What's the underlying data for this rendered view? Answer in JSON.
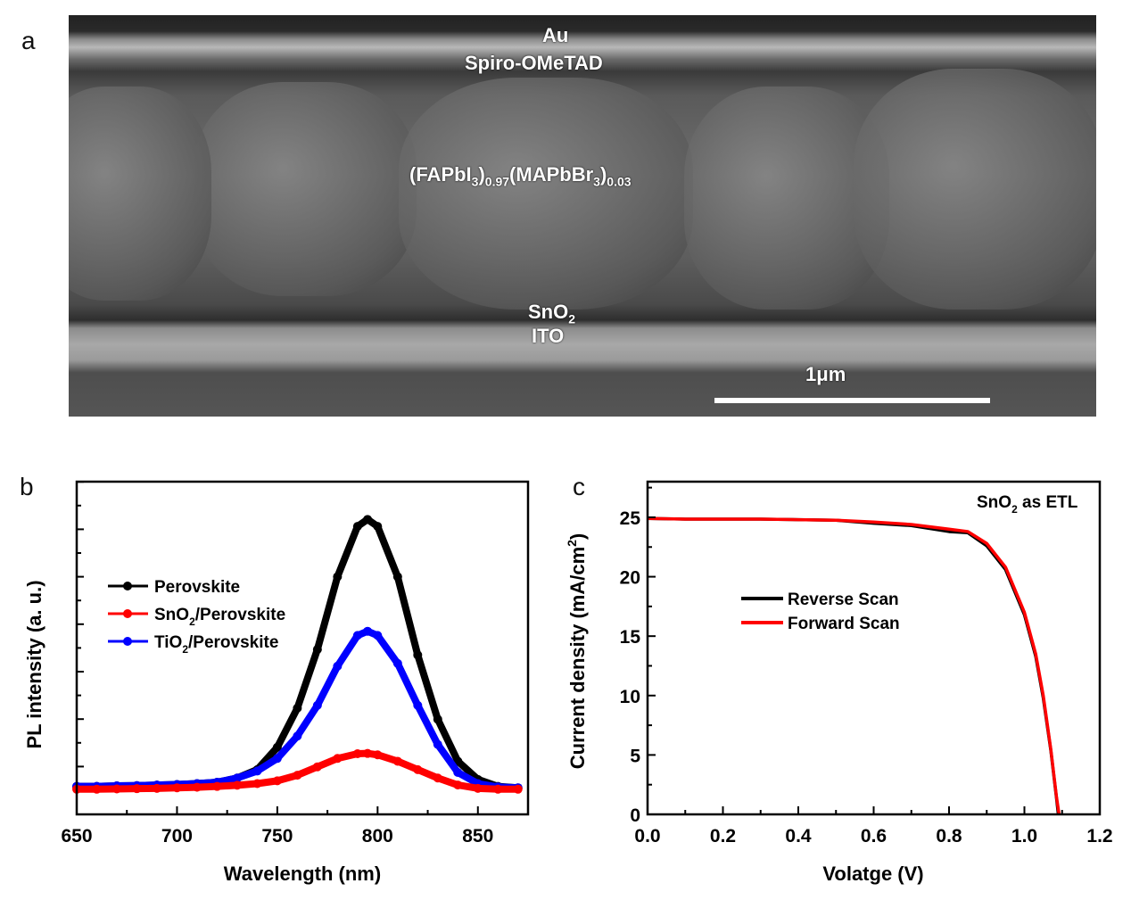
{
  "panels": {
    "a": "a",
    "b": "b",
    "c": "c"
  },
  "sem": {
    "au": "Au",
    "spiro": "Spiro-OMeTAD",
    "perovskite": {
      "p1": "(FAPbI",
      "s1": "3",
      "p2": ")",
      "s2": "0.97",
      "p3": "(MAPbBr",
      "s3": "3",
      "p4": ")",
      "s4": "0.03"
    },
    "sno2": {
      "main": "SnO",
      "sub": "2"
    },
    "ito": "ITO",
    "scale": "1μm"
  },
  "chart_data": [
    {
      "type": "scatter",
      "xlabel": "Wavelength (nm)",
      "ylabel": "PL intensity (a. u.)",
      "xlim": [
        650,
        875
      ],
      "ylim": [
        -0.09,
        1.1
      ],
      "xticks": [
        650,
        700,
        750,
        800,
        850
      ],
      "y_tick_labels": "none",
      "legend_placement": "center-left",
      "x": [
        650,
        660,
        670,
        680,
        690,
        700,
        710,
        720,
        730,
        740,
        750,
        760,
        770,
        780,
        790,
        795,
        800,
        810,
        820,
        830,
        840,
        850,
        860,
        870
      ],
      "series": [
        {
          "name": "Perovskite",
          "name_main": "Perovskite",
          "name_sub": "",
          "color": "#000000",
          "values": [
            0.01,
            0.01,
            0.012,
            0.013,
            0.015,
            0.017,
            0.02,
            0.025,
            0.04,
            0.07,
            0.15,
            0.29,
            0.5,
            0.76,
            0.94,
            0.965,
            0.94,
            0.76,
            0.48,
            0.25,
            0.1,
            0.035,
            0.01,
            0.005
          ]
        },
        {
          "name": "SnO2/Perovskite",
          "name_main": "SnO",
          "name_sub": "2",
          "name_rest": "/Perovskite",
          "color": "#ff0000",
          "values": [
            0.0,
            0.0,
            0.001,
            0.002,
            0.003,
            0.005,
            0.007,
            0.01,
            0.014,
            0.02,
            0.03,
            0.05,
            0.08,
            0.11,
            0.127,
            0.128,
            0.123,
            0.1,
            0.07,
            0.04,
            0.015,
            0.003,
            0.0,
            0.0
          ]
        },
        {
          "name": "TiO2/Perovskite",
          "name_main": "TiO",
          "name_sub": "2",
          "name_rest": "/Perovskite",
          "color": "#0000ff",
          "values": [
            0.01,
            0.01,
            0.012,
            0.013,
            0.015,
            0.017,
            0.02,
            0.025,
            0.04,
            0.065,
            0.11,
            0.19,
            0.3,
            0.44,
            0.55,
            0.565,
            0.55,
            0.45,
            0.3,
            0.16,
            0.06,
            0.02,
            0.008,
            0.005
          ]
        }
      ]
    },
    {
      "type": "line",
      "xlabel": "Volatge (V)",
      "ylabel": "Current density (mA/cm",
      "ylabel_sup": "2",
      "ylabel_end": ")",
      "xlim": [
        0,
        1.2
      ],
      "ylim": [
        0,
        28
      ],
      "xticks": [
        0.0,
        0.2,
        0.4,
        0.6,
        0.8,
        1.0,
        1.2
      ],
      "yticks": [
        0,
        5,
        10,
        15,
        20,
        25
      ],
      "annotation": {
        "main": "SnO",
        "sub": "2",
        "rest": " as ETL"
      },
      "legend_placement": "center-left",
      "series": [
        {
          "name": "Reverse Scan",
          "color": "#000000",
          "x": [
            0,
            0.1,
            0.2,
            0.3,
            0.4,
            0.5,
            0.6,
            0.7,
            0.8,
            0.85,
            0.9,
            0.95,
            1.0,
            1.03,
            1.05,
            1.07,
            1.085,
            1.09
          ],
          "values": [
            24.9,
            24.85,
            24.85,
            24.85,
            24.8,
            24.75,
            24.5,
            24.3,
            23.8,
            23.7,
            22.6,
            20.6,
            16.8,
            13.3,
            9.8,
            5.4,
            1.4,
            0
          ]
        },
        {
          "name": "Forward Scan",
          "color": "#ff0000",
          "x": [
            0,
            0.1,
            0.2,
            0.3,
            0.4,
            0.5,
            0.6,
            0.7,
            0.8,
            0.85,
            0.9,
            0.95,
            1.0,
            1.03,
            1.05,
            1.07,
            1.085,
            1.092
          ],
          "values": [
            24.9,
            24.85,
            24.85,
            24.85,
            24.8,
            24.75,
            24.6,
            24.4,
            24.0,
            23.8,
            22.8,
            20.8,
            17.0,
            13.5,
            10.0,
            5.5,
            1.5,
            0
          ]
        }
      ]
    }
  ]
}
